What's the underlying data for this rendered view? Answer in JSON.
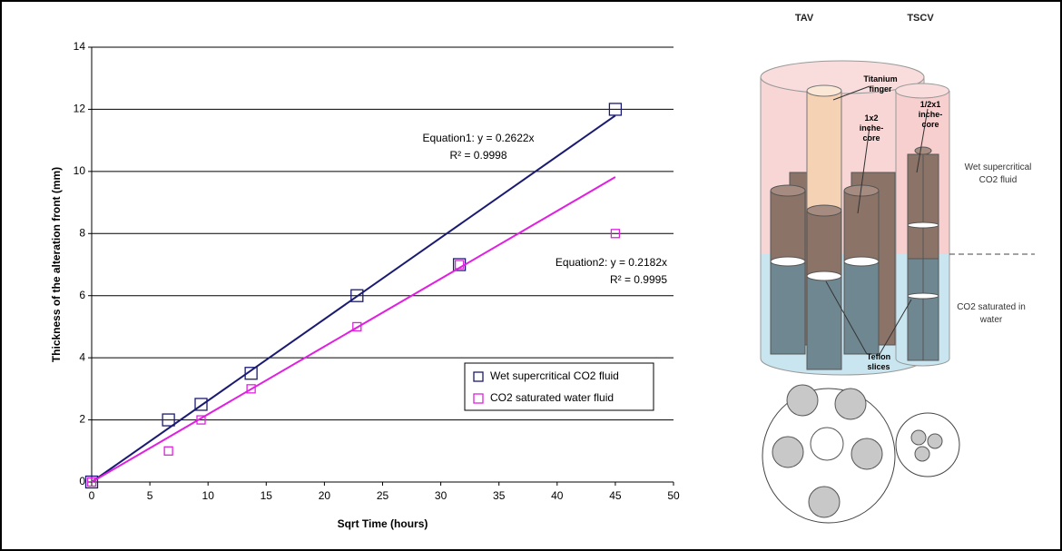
{
  "chart_data": {
    "type": "scatter",
    "xlabel": "Sqrt Time (hours)",
    "ylabel": "Thickness of the alteration front (mm)",
    "xlim": [
      0,
      50
    ],
    "xticks": [
      0,
      5,
      10,
      15,
      20,
      25,
      30,
      35,
      40,
      45,
      50
    ],
    "ylim": [
      0,
      14
    ],
    "yticks": [
      0,
      2,
      4,
      6,
      8,
      10,
      12,
      14
    ],
    "grid": true,
    "legend": "lower right",
    "series": [
      {
        "name": "Wet supercritical CO2 fluid",
        "color": "#1a1a72",
        "x": [
          0,
          6.6,
          9.4,
          13.7,
          22.8,
          31.6,
          45
        ],
        "values": [
          0,
          2,
          2.5,
          3.5,
          6,
          7,
          12
        ],
        "trend_slope": 0.2622,
        "equation": "Equation1: y = 0.2622x",
        "r2": "R² = 0.9998"
      },
      {
        "name": "CO2 saturated water fluid",
        "color": "#e020e0",
        "x": [
          0,
          6.6,
          9.4,
          13.7,
          22.8,
          31.6,
          45
        ],
        "values": [
          0,
          1,
          2,
          3,
          5,
          7,
          8
        ],
        "trend_slope": 0.2182,
        "equation": "Equation2: y = 0.2182x",
        "r2": "R² = 0.9995"
      }
    ]
  },
  "diagram": {
    "left_title": "TAV",
    "right_title": "TSCV",
    "finger": "Titanium finger",
    "core_large": "1x2 inche-core",
    "core_small": "1/2x1 inche-core",
    "wet": "Wet supercritical CO2 fluid",
    "saturated": "CO2 saturated in water",
    "teflon": "Teflon slices"
  }
}
